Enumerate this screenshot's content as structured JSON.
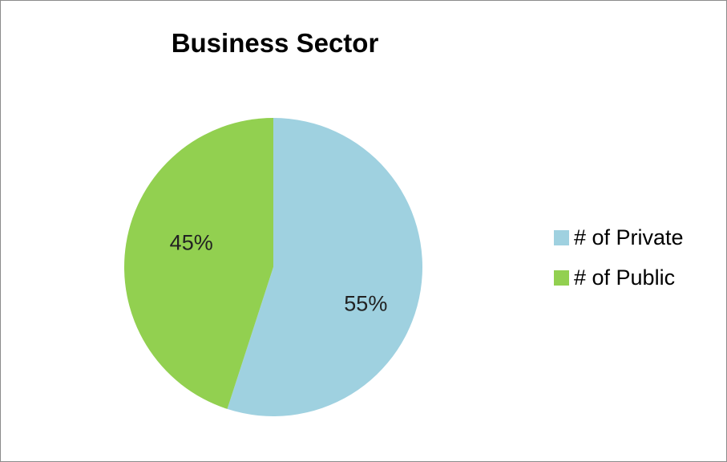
{
  "chart_data": {
    "type": "pie",
    "title": "Business Sector",
    "categories": [
      "# of Private",
      "# of Public"
    ],
    "values": [
      55,
      45
    ],
    "labels": [
      "55%",
      "45%"
    ],
    "colors": [
      "#9fd1e0",
      "#92d050"
    ],
    "start_angle": "12 o'clock",
    "direction": "clockwise",
    "legend": "right"
  }
}
